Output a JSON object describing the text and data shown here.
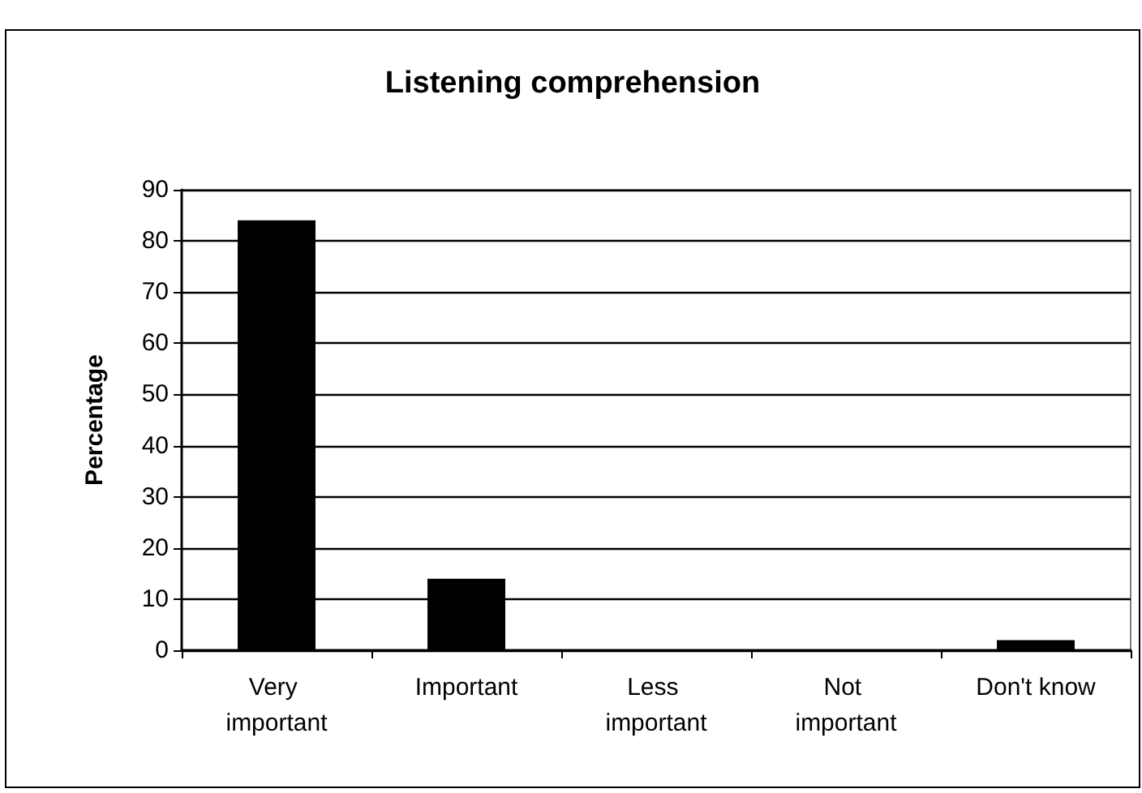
{
  "chart_data": {
    "type": "bar",
    "title": "Listening comprehension",
    "ylabel": "Percentage",
    "categories": [
      "Very important",
      "Important",
      "Less important",
      "Not important",
      "Don't know"
    ],
    "values": [
      84,
      14,
      0,
      0,
      2
    ],
    "color": "#000000",
    "ylim": [
      0,
      90
    ],
    "yticks": [
      0,
      10,
      20,
      30,
      40,
      50,
      60,
      70,
      80,
      90
    ],
    "grid": "y"
  }
}
